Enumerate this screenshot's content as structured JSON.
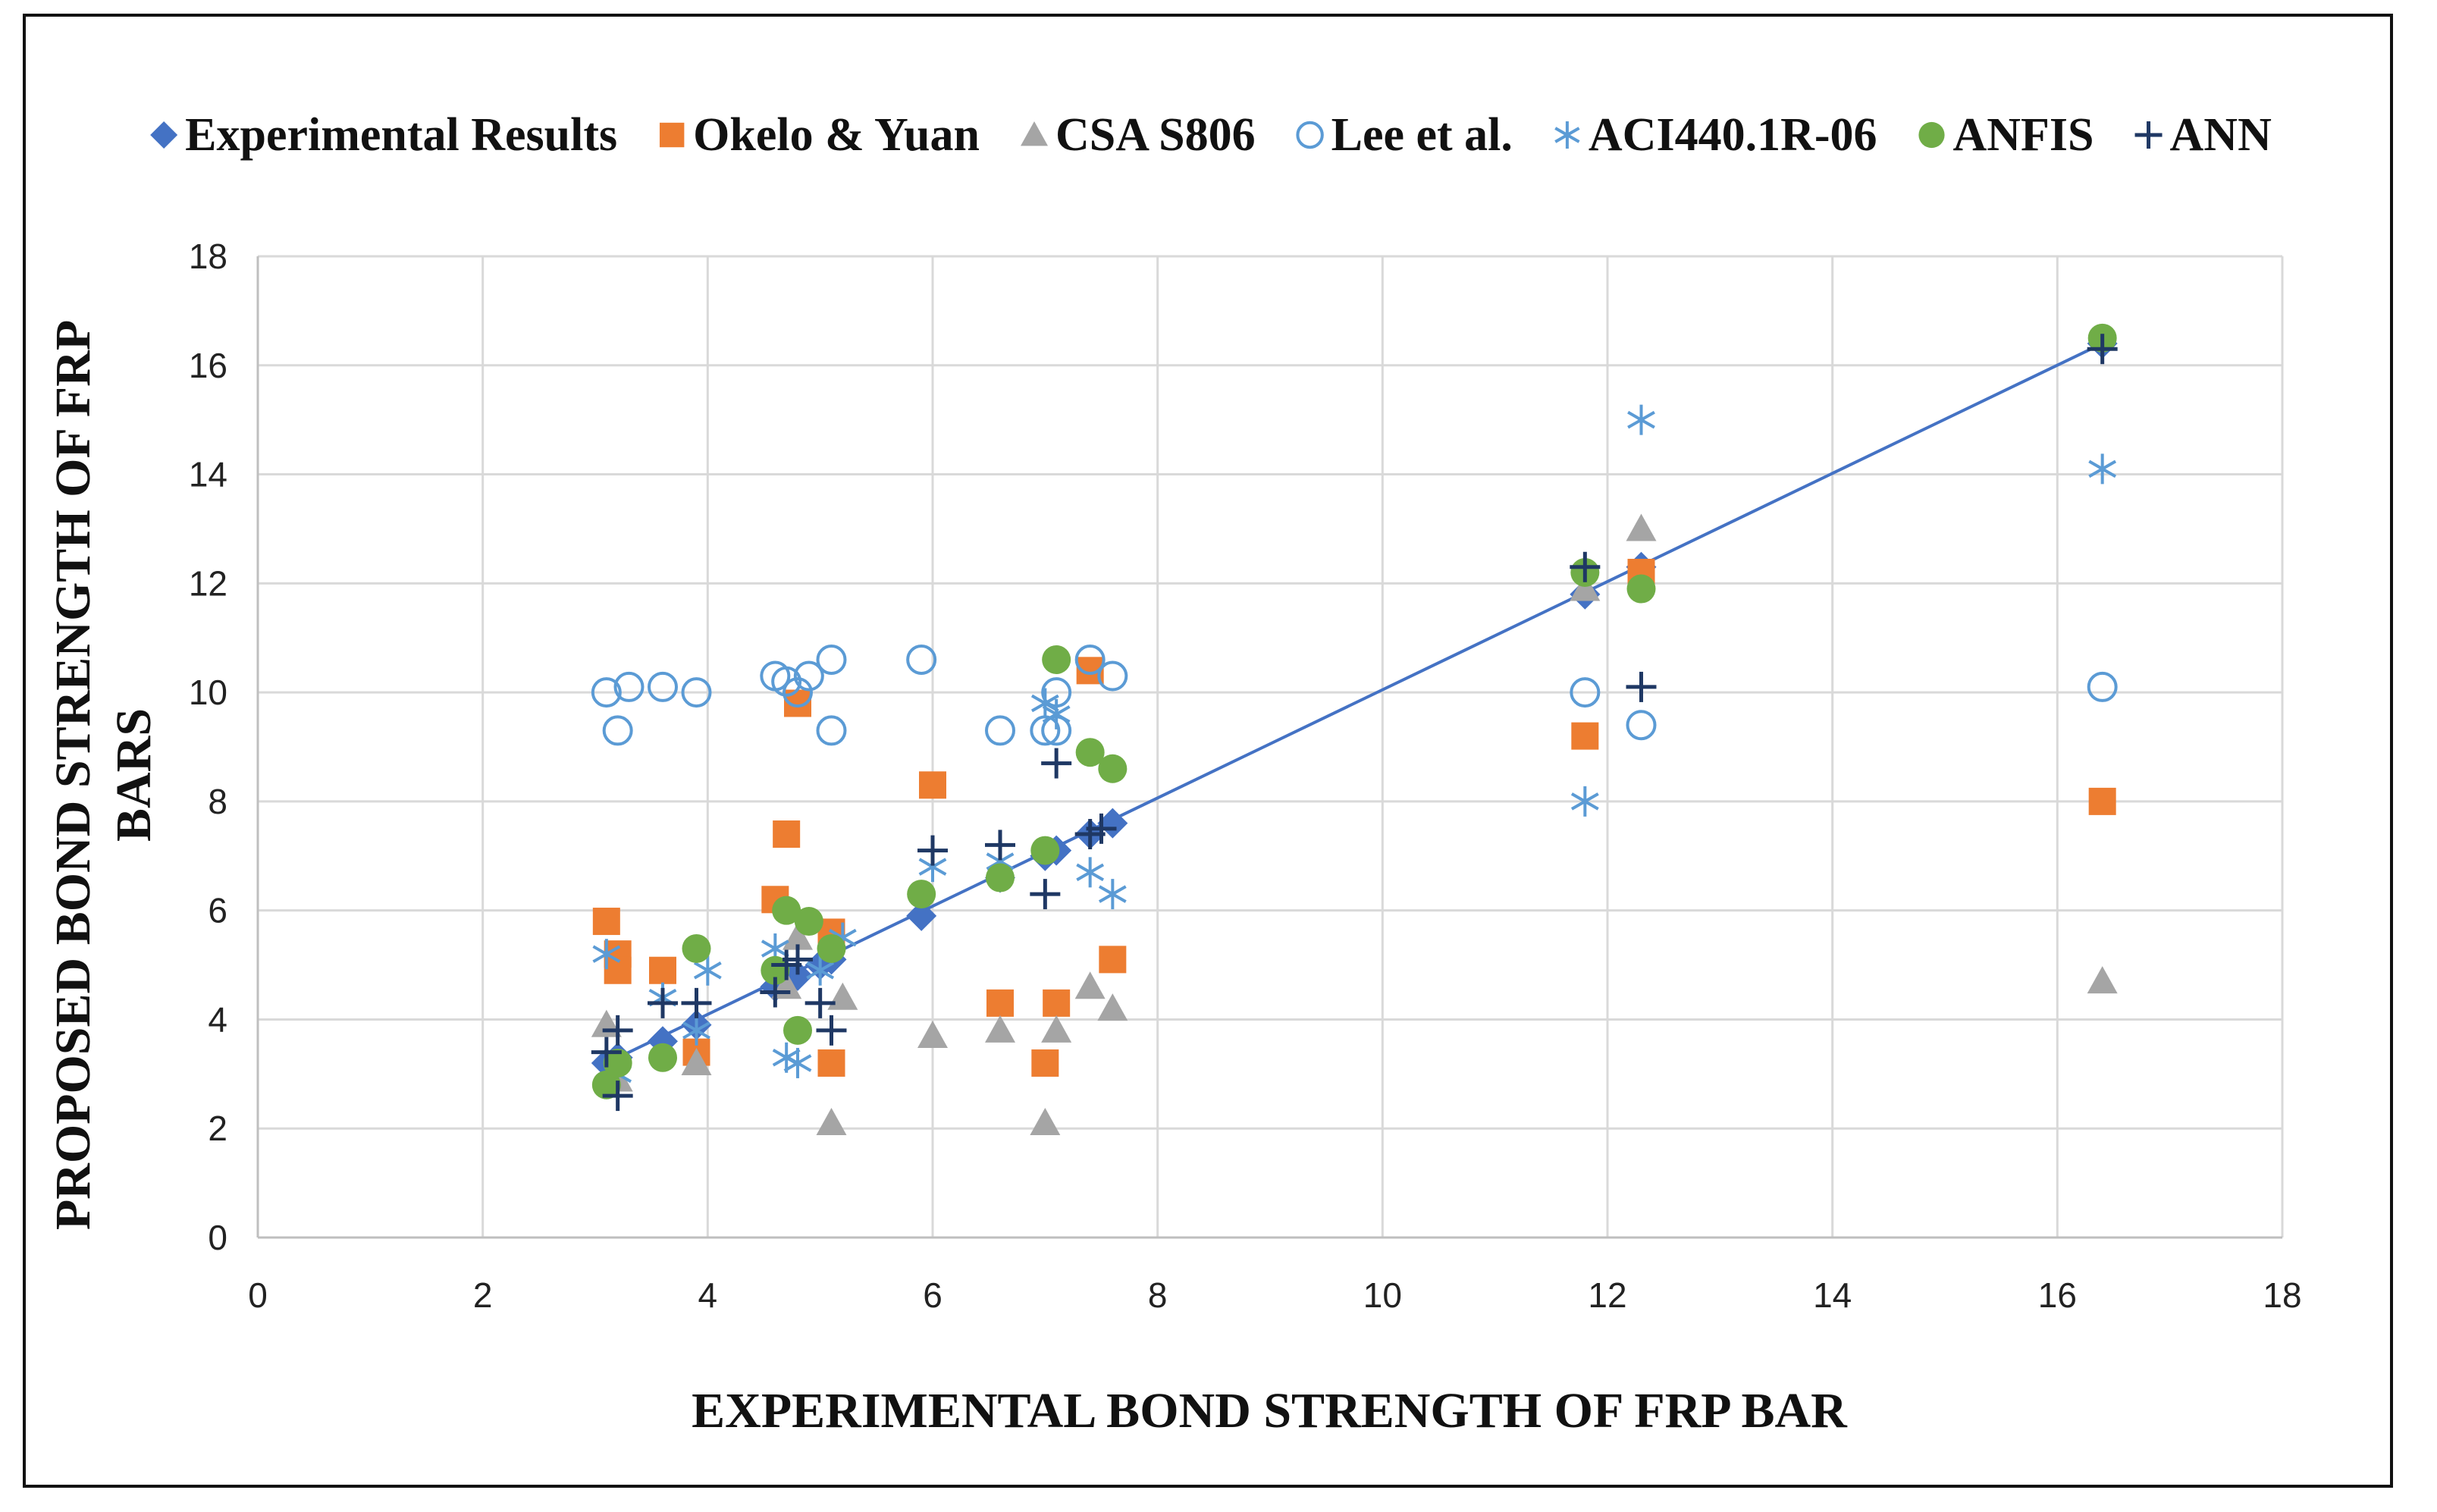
{
  "chart_data": {
    "type": "scatter",
    "title": "",
    "xlabel": "EXPERIMENTAL  BOND STRENGTH OF FRP BAR",
    "ylabel_lines": [
      "PROPOSED BOND STRENGTH OF FRP",
      "BARS"
    ],
    "xlim": [
      0,
      18
    ],
    "ylim": [
      0,
      18
    ],
    "xticks": [
      0,
      2,
      4,
      6,
      8,
      10,
      12,
      14,
      16,
      18
    ],
    "yticks": [
      0,
      2,
      4,
      6,
      8,
      10,
      12,
      14,
      16,
      18
    ],
    "grid": true,
    "legend_position": "top",
    "trendline": {
      "series": "Experimental Results",
      "from": [
        3.1,
        3.2
      ],
      "to": [
        16.4,
        16.4
      ],
      "color": "#4472c4"
    },
    "series": [
      {
        "name": "Experimental Results",
        "marker": "diamond",
        "color": "#4472c4",
        "points": [
          [
            3.1,
            3.2
          ],
          [
            3.2,
            3.3
          ],
          [
            3.6,
            3.6
          ],
          [
            3.9,
            3.9
          ],
          [
            4.6,
            4.6
          ],
          [
            4.7,
            4.8
          ],
          [
            4.8,
            4.8
          ],
          [
            5.0,
            5.0
          ],
          [
            5.1,
            5.1
          ],
          [
            5.9,
            5.9
          ],
          [
            6.6,
            6.6
          ],
          [
            7.0,
            7.0
          ],
          [
            7.1,
            7.1
          ],
          [
            7.4,
            7.4
          ],
          [
            7.6,
            7.6
          ],
          [
            11.8,
            11.8
          ],
          [
            12.3,
            12.3
          ],
          [
            16.4,
            16.4
          ]
        ]
      },
      {
        "name": "Okelo & Yuan",
        "marker": "square",
        "color": "#ed7d31",
        "points": [
          [
            3.1,
            5.8
          ],
          [
            3.2,
            5.2
          ],
          [
            3.2,
            4.9
          ],
          [
            3.6,
            4.9
          ],
          [
            3.9,
            3.4
          ],
          [
            4.6,
            6.2
          ],
          [
            4.7,
            7.4
          ],
          [
            4.8,
            9.8
          ],
          [
            5.1,
            3.2
          ],
          [
            5.1,
            5.6
          ],
          [
            6.0,
            8.3
          ],
          [
            6.6,
            4.3
          ],
          [
            7.0,
            3.2
          ],
          [
            7.1,
            4.3
          ],
          [
            7.4,
            10.4
          ],
          [
            7.6,
            5.1
          ],
          [
            11.8,
            9.2
          ],
          [
            12.3,
            12.2
          ],
          [
            16.4,
            8.0
          ]
        ]
      },
      {
        "name": "CSA S806",
        "marker": "triangle",
        "color": "#a5a5a5",
        "points": [
          [
            3.1,
            3.9
          ],
          [
            3.2,
            2.9
          ],
          [
            3.9,
            3.2
          ],
          [
            4.7,
            4.6
          ],
          [
            4.8,
            5.5
          ],
          [
            5.1,
            2.1
          ],
          [
            5.2,
            4.4
          ],
          [
            6.0,
            3.7
          ],
          [
            6.6,
            3.8
          ],
          [
            7.0,
            2.1
          ],
          [
            7.1,
            3.8
          ],
          [
            7.4,
            4.6
          ],
          [
            7.6,
            4.2
          ],
          [
            11.8,
            11.9
          ],
          [
            12.3,
            13.0
          ],
          [
            16.4,
            4.7
          ]
        ]
      },
      {
        "name": "Lee et al.",
        "marker": "circle-open",
        "color": "#5b9bd5",
        "points": [
          [
            3.1,
            10.0
          ],
          [
            3.2,
            9.3
          ],
          [
            3.3,
            10.1
          ],
          [
            3.6,
            10.1
          ],
          [
            3.9,
            10.0
          ],
          [
            4.6,
            10.3
          ],
          [
            4.7,
            10.2
          ],
          [
            4.8,
            10.0
          ],
          [
            4.9,
            10.3
          ],
          [
            5.1,
            9.3
          ],
          [
            5.1,
            10.6
          ],
          [
            5.9,
            10.6
          ],
          [
            6.6,
            9.3
          ],
          [
            7.0,
            9.3
          ],
          [
            7.1,
            9.3
          ],
          [
            7.1,
            10.0
          ],
          [
            7.4,
            10.6
          ],
          [
            7.6,
            10.3
          ],
          [
            11.8,
            10.0
          ],
          [
            12.3,
            9.4
          ],
          [
            16.4,
            10.1
          ]
        ]
      },
      {
        "name": "ACI440.1R-06",
        "marker": "asterisk",
        "color": "#5b9bd5",
        "points": [
          [
            3.1,
            5.2
          ],
          [
            3.2,
            3.0
          ],
          [
            3.6,
            4.4
          ],
          [
            3.9,
            3.8
          ],
          [
            4.0,
            4.9
          ],
          [
            4.6,
            5.3
          ],
          [
            4.7,
            3.3
          ],
          [
            4.8,
            3.2
          ],
          [
            5.0,
            4.9
          ],
          [
            5.2,
            5.5
          ],
          [
            6.0,
            6.8
          ],
          [
            6.6,
            6.9
          ],
          [
            7.0,
            9.8
          ],
          [
            7.1,
            9.6
          ],
          [
            7.4,
            6.7
          ],
          [
            7.6,
            6.3
          ],
          [
            11.8,
            8.0
          ],
          [
            12.3,
            15.0
          ],
          [
            16.4,
            14.1
          ]
        ]
      },
      {
        "name": "ANFIS",
        "marker": "circle",
        "color": "#70ad47",
        "points": [
          [
            3.1,
            2.8
          ],
          [
            3.2,
            3.2
          ],
          [
            3.6,
            3.3
          ],
          [
            3.9,
            5.3
          ],
          [
            4.6,
            4.9
          ],
          [
            4.7,
            6.0
          ],
          [
            4.8,
            3.8
          ],
          [
            4.9,
            5.8
          ],
          [
            5.1,
            5.3
          ],
          [
            5.9,
            6.3
          ],
          [
            6.6,
            6.6
          ],
          [
            7.0,
            7.1
          ],
          [
            7.1,
            10.6
          ],
          [
            7.4,
            8.9
          ],
          [
            7.6,
            8.6
          ],
          [
            11.8,
            12.2
          ],
          [
            12.3,
            11.9
          ],
          [
            16.4,
            16.5
          ]
        ]
      },
      {
        "name": "ANN",
        "marker": "plus",
        "color": "#1f3864",
        "points": [
          [
            3.1,
            3.4
          ],
          [
            3.2,
            2.6
          ],
          [
            3.2,
            3.8
          ],
          [
            3.6,
            4.3
          ],
          [
            3.9,
            4.3
          ],
          [
            4.6,
            4.5
          ],
          [
            4.7,
            5.0
          ],
          [
            4.8,
            5.1
          ],
          [
            5.0,
            4.3
          ],
          [
            5.1,
            3.8
          ],
          [
            6.0,
            7.1
          ],
          [
            6.6,
            7.2
          ],
          [
            7.0,
            6.3
          ],
          [
            7.1,
            8.7
          ],
          [
            7.4,
            7.4
          ],
          [
            7.5,
            7.5
          ],
          [
            11.8,
            12.3
          ],
          [
            12.3,
            10.1
          ],
          [
            16.4,
            16.3
          ]
        ]
      }
    ]
  }
}
